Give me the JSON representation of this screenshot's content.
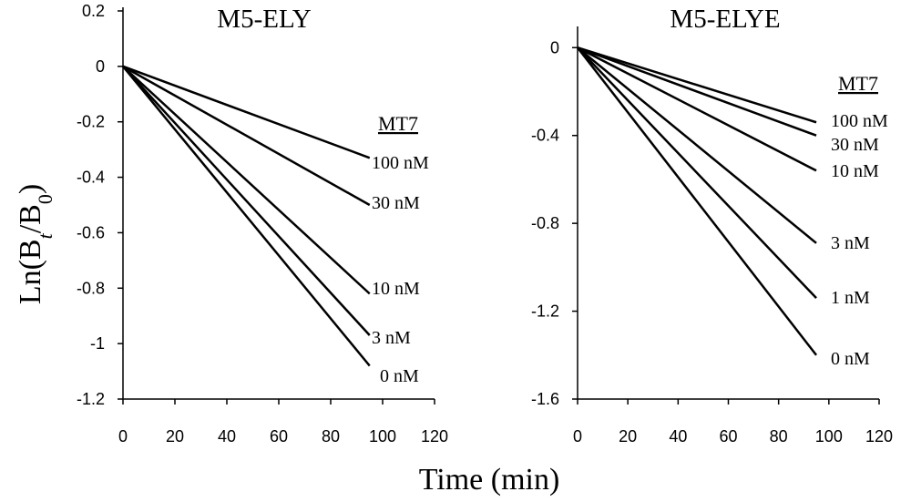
{
  "ylabel": {
    "main": "Ln(B",
    "sub1": "t",
    "mid": "/B",
    "sub2": "0",
    "end": ")"
  },
  "xlabel": "Time (min)",
  "chart_data": [
    {
      "type": "line",
      "title": "M5-ELY",
      "legend_title": "MT7",
      "xlim": [
        0,
        120
      ],
      "ylim": [
        -1.2,
        0.2
      ],
      "xticks": [
        0,
        20,
        40,
        60,
        80,
        100,
        120
      ],
      "yticks": [
        0.2,
        0,
        -0.2,
        -0.4,
        -0.6,
        -0.8,
        -1,
        -1.2
      ],
      "ytick_labels": [
        "0.2",
        "0",
        "-0.2",
        "-0.4",
        "-0.6",
        "-0.8",
        "-1",
        "-1.2"
      ],
      "series": [
        {
          "name": "100 nM",
          "x": [
            0,
            95
          ],
          "y": [
            0,
            -0.33
          ]
        },
        {
          "name": "30 nM",
          "x": [
            0,
            95
          ],
          "y": [
            0,
            -0.5
          ]
        },
        {
          "name": "10 nM",
          "x": [
            0,
            95
          ],
          "y": [
            0,
            -0.82
          ]
        },
        {
          "name": "3 nM",
          "x": [
            0,
            95
          ],
          "y": [
            0,
            -0.97
          ]
        },
        {
          "name": "0 nM",
          "x": [
            0,
            95
          ],
          "y": [
            0,
            -1.08
          ]
        }
      ]
    },
    {
      "type": "line",
      "title": "M5-ELYE",
      "legend_title": "MT7",
      "xlim": [
        0,
        120
      ],
      "ylim": [
        -1.6,
        0.08
      ],
      "xticks": [
        0,
        20,
        40,
        60,
        80,
        100,
        120
      ],
      "yticks": [
        0,
        -0.4,
        -0.8,
        -1.2,
        -1.6
      ],
      "ytick_labels": [
        "0",
        "-0.4",
        "-0.8",
        "-1.2",
        "-1.6"
      ],
      "series": [
        {
          "name": "100 nM",
          "x": [
            0,
            95
          ],
          "y": [
            0,
            -0.34
          ]
        },
        {
          "name": "30 nM",
          "x": [
            0,
            95
          ],
          "y": [
            0,
            -0.4
          ]
        },
        {
          "name": "10 nM",
          "x": [
            0,
            95
          ],
          "y": [
            0,
            -0.56
          ]
        },
        {
          "name": "3 nM",
          "x": [
            0,
            95
          ],
          "y": [
            0,
            -0.89
          ]
        },
        {
          "name": "1 nM",
          "x": [
            0,
            95
          ],
          "y": [
            0,
            -1.14
          ]
        },
        {
          "name": "0 nM",
          "x": [
            0,
            95
          ],
          "y": [
            0,
            -1.4
          ]
        }
      ]
    }
  ]
}
